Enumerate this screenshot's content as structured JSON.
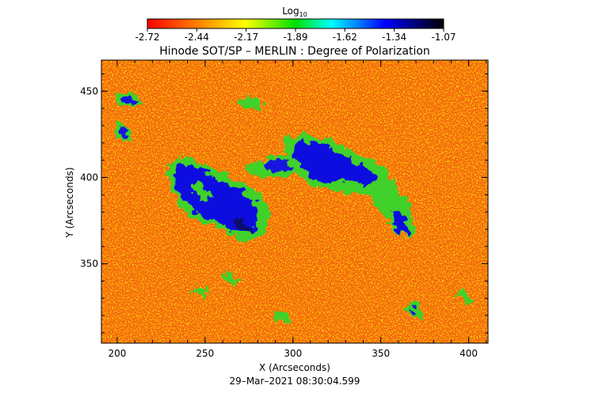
{
  "colorbar": {
    "label_base": "Log",
    "label_sub": "10",
    "ticks": [
      "-2.72",
      "-2.44",
      "-2.17",
      "-1.89",
      "-1.62",
      "-1.34",
      "-1.07"
    ],
    "colormap": [
      "#ff0000",
      "#ff8000",
      "#ffff00",
      "#00e000",
      "#00ffff",
      "#0000ff",
      "#000000"
    ]
  },
  "chart_data": {
    "type": "heatmap",
    "title": "Hinode SOT/SP – MERLIN : Degree of Polarization",
    "xlabel": "X (Arcseconds)",
    "ylabel": "Y (Arcseconds)",
    "xlim": [
      191,
      411
    ],
    "ylim": [
      304,
      468
    ],
    "xticks": [
      "200",
      "250",
      "300",
      "350",
      "400"
    ],
    "yticks": [
      "350",
      "400",
      "450"
    ],
    "value_range": [
      -2.72,
      -1.07
    ],
    "value_label": "Log10",
    "grid": false
  },
  "footer": {
    "timestamp": "29–Mar–2021 08:30:04.599"
  }
}
